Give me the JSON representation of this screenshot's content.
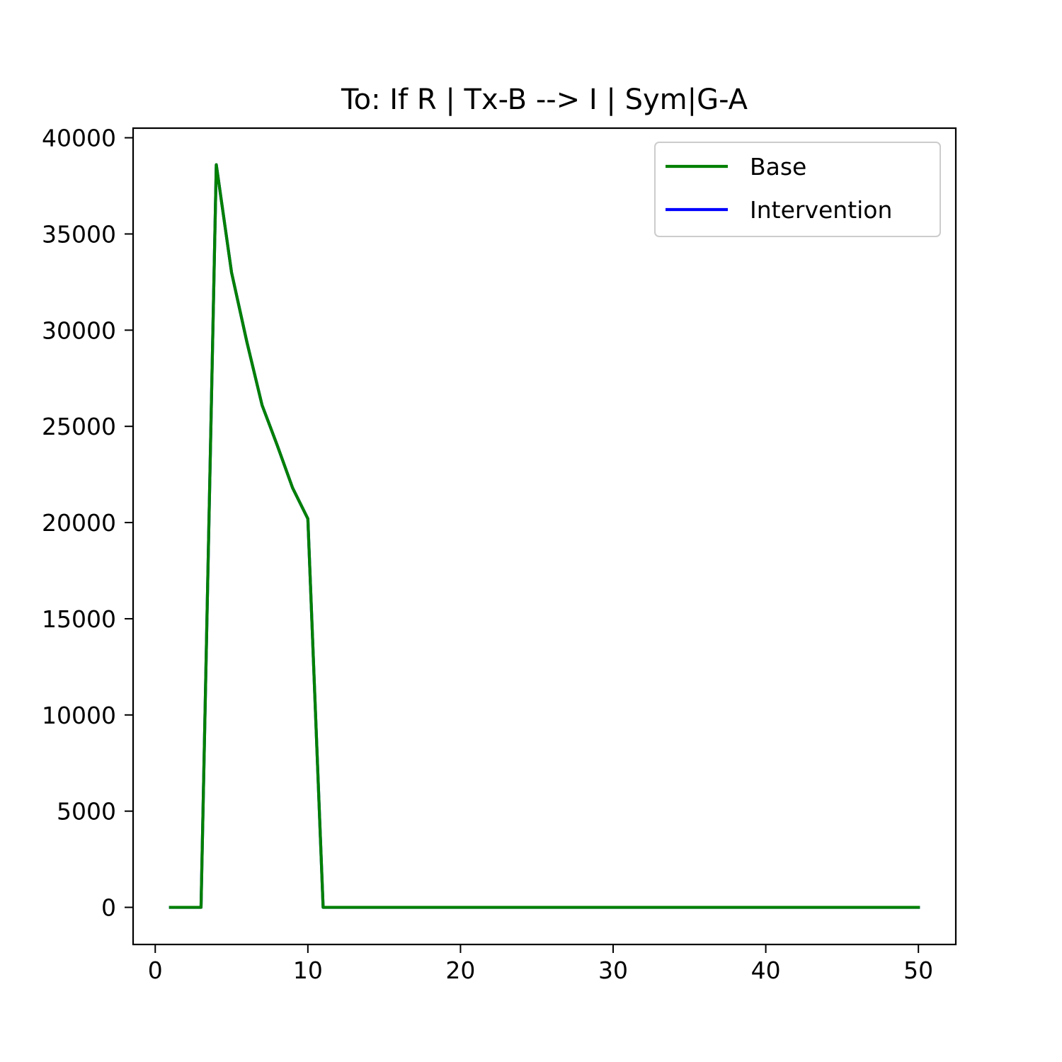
{
  "chart_data": {
    "type": "line",
    "title": "To: If R | Tx-B  --> I | Sym|G-A",
    "xlabel": "",
    "ylabel": "",
    "xlim": [
      -1.45,
      52.45
    ],
    "ylim": [
      -1930,
      40500
    ],
    "xticks": [
      0,
      10,
      20,
      30,
      40,
      50
    ],
    "yticks": [
      0,
      5000,
      10000,
      15000,
      20000,
      25000,
      30000,
      35000,
      40000
    ],
    "grid": false,
    "legend_position": "upper right",
    "x": [
      1,
      2,
      3,
      4,
      5,
      6,
      7,
      8,
      9,
      10,
      11,
      12,
      13,
      14,
      15,
      16,
      17,
      18,
      19,
      20,
      21,
      22,
      23,
      24,
      25,
      26,
      27,
      28,
      29,
      30,
      31,
      32,
      33,
      34,
      35,
      36,
      37,
      38,
      39,
      40,
      41,
      42,
      43,
      44,
      45,
      46,
      47,
      48,
      49,
      50
    ],
    "series": [
      {
        "name": "Intervention",
        "color": "#0000ff",
        "values": [
          0,
          0,
          0,
          38600,
          33000,
          29400,
          26100,
          24000,
          21800,
          20200,
          0,
          0,
          0,
          0,
          0,
          0,
          0,
          0,
          0,
          0,
          0,
          0,
          0,
          0,
          0,
          0,
          0,
          0,
          0,
          0,
          0,
          0,
          0,
          0,
          0,
          0,
          0,
          0,
          0,
          0,
          0,
          0,
          0,
          0,
          0,
          0,
          0,
          0,
          0,
          0
        ]
      },
      {
        "name": "Base",
        "color": "#008000",
        "values": [
          0,
          0,
          0,
          38600,
          33000,
          29400,
          26100,
          24000,
          21800,
          20200,
          0,
          0,
          0,
          0,
          0,
          0,
          0,
          0,
          0,
          0,
          0,
          0,
          0,
          0,
          0,
          0,
          0,
          0,
          0,
          0,
          0,
          0,
          0,
          0,
          0,
          0,
          0,
          0,
          0,
          0,
          0,
          0,
          0,
          0,
          0,
          0,
          0,
          0,
          0,
          0
        ]
      }
    ],
    "legend": [
      {
        "label": "Base",
        "color": "#008000"
      },
      {
        "label": "Intervention",
        "color": "#0000ff"
      }
    ]
  }
}
